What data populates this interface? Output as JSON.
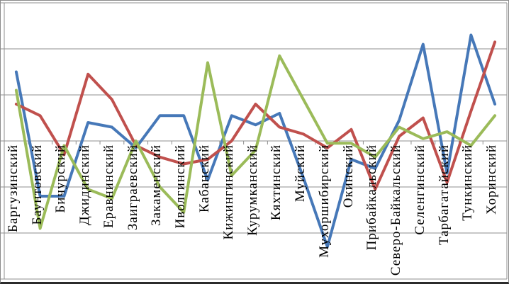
{
  "chart_data": {
    "type": "line",
    "title": "",
    "legend": "none",
    "grid": true,
    "gridline_step": 1,
    "ylim": [
      -3,
      3
    ],
    "x_axis_position": 0,
    "tick_labels_rotation": -90,
    "gridline_color": "#8f8f8f",
    "categories": [
      "Баргузинский",
      "Баунтовский",
      "Бичурский",
      "Джидинский",
      "Еравнинский",
      "Заиграевский",
      "Закаменский",
      "Иволгинский",
      "Кабанский",
      "Кижингинский",
      "Курумканский",
      "Кяхтинский",
      "Муйский",
      "Мухоршибирский",
      "Окинский",
      "Прибайкальский",
      "Северо-Байкальский",
      "Селенгинский",
      "Тарбагатайский",
      "Тункинский",
      "Хоринский"
    ],
    "series": [
      {
        "name": "blue",
        "color": "#4678b8",
        "values": [
          1.5,
          -1.2,
          -1.2,
          0.4,
          0.3,
          -0.15,
          0.55,
          0.55,
          -0.85,
          0.55,
          0.35,
          0.6,
          -0.8,
          -2.3,
          -0.4,
          -0.6,
          0.45,
          2.1,
          -0.7,
          2.3,
          0.8
        ]
      },
      {
        "name": "red",
        "color": "#c0504d",
        "values": [
          0.8,
          0.55,
          -0.3,
          1.45,
          0.9,
          -0.1,
          -0.35,
          -0.5,
          -0.4,
          0.0,
          0.8,
          0.3,
          0.15,
          -0.15,
          0.25,
          -1.05,
          0.1,
          0.5,
          -0.9,
          0.65,
          2.15
        ]
      },
      {
        "name": "green",
        "color": "#9bbb59",
        "values": [
          1.1,
          -1.9,
          -0.1,
          -1.05,
          -1.25,
          0.0,
          -1.0,
          -1.55,
          1.7,
          -0.75,
          -0.2,
          1.85,
          0.9,
          -0.05,
          -0.05,
          -0.35,
          0.3,
          0.05,
          0.2,
          -0.1,
          0.55
        ]
      }
    ]
  }
}
